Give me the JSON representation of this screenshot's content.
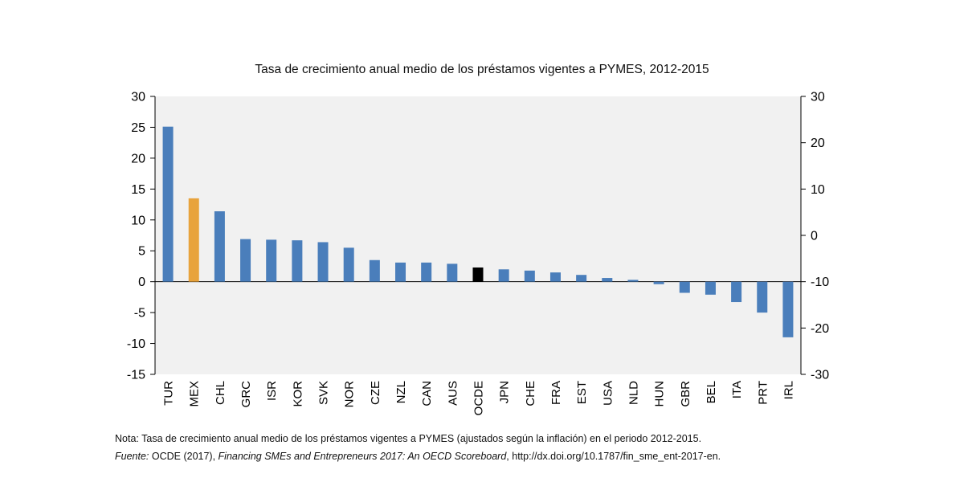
{
  "title": "Tasa de crecimiento anual medio de los préstamos vigentes a PYMES, 2012-2015",
  "note": "Nota: Tasa de crecimiento anual medio de los préstamos vigentes a PYMES (ajustados según la inflación) en el periodo 2012-2015.",
  "source": {
    "label": "Fuente:",
    "org": " OCDE (2017), ",
    "publication": "Financing SMEs and Entrepreneurs 2017: An OECD Scoreboard",
    "link": ", http://dx.doi.org/10.1787/fin_sme_ent-2017-en."
  },
  "chart_data": {
    "type": "bar",
    "title": "Tasa de crecimiento anual medio de los préstamos vigentes a PYMES, 2012-2015",
    "xlabel": "",
    "ylabel": "",
    "categories": [
      "TUR",
      "MEX",
      "CHL",
      "GRC",
      "ISR",
      "KOR",
      "SVK",
      "NOR",
      "CZE",
      "NZL",
      "CAN",
      "AUS",
      "OCDE",
      "JPN",
      "CHE",
      "FRA",
      "EST",
      "USA",
      "NLD",
      "HUN",
      "GBR",
      "BEL",
      "ITA",
      "PRT",
      "IRL"
    ],
    "values": [
      25.1,
      13.5,
      11.4,
      6.9,
      6.8,
      6.7,
      6.4,
      5.5,
      3.5,
      3.1,
      3.1,
      2.9,
      2.3,
      2.0,
      1.8,
      1.5,
      1.1,
      0.6,
      0.3,
      -0.4,
      -1.8,
      -2.1,
      -3.3,
      -5.0,
      -9.0
    ],
    "highlight_colors": {
      "MEX": "#e8a33c",
      "OCDE": "#000000"
    },
    "bar_color": "#4a7ebb",
    "ylim": [
      -15,
      30
    ],
    "yticks": [
      -15,
      -10,
      -5,
      0,
      5,
      10,
      15,
      20,
      25,
      30
    ],
    "y2lim": [
      -30,
      30
    ],
    "y2ticks": [
      -30,
      -20,
      -10,
      0,
      10,
      20,
      30
    ],
    "grid": false,
    "legend": "none"
  }
}
